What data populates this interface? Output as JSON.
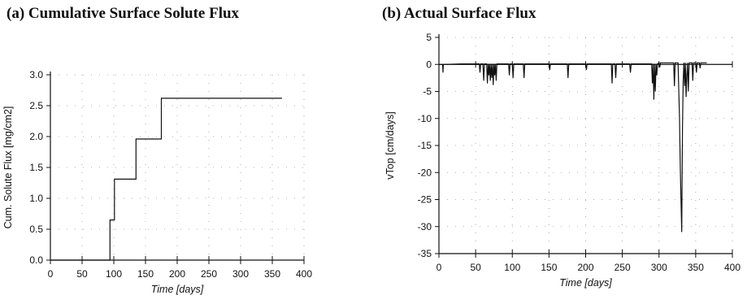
{
  "panel_titles": {
    "a": "(a)  Cumulative Surface Solute Flux",
    "b": "(b) Actual Surface Flux"
  },
  "chart_data": [
    {
      "type": "line",
      "step": true,
      "title": "(a)  Cumulative Surface Solute Flux",
      "xlabel": "Time [days]",
      "ylabel": "Cum. Solute Flux [mg/cm2]",
      "xlim": [
        0,
        400
      ],
      "ylim": [
        0,
        3.0
      ],
      "xticks": [
        "0",
        "50",
        "100",
        "150",
        "200",
        "250",
        "300",
        "350",
        "400"
      ],
      "yticks": [
        "0.0",
        "0.5",
        "1.0",
        "1.5",
        "2.0",
        "2.5",
        "3.0"
      ],
      "grid": true,
      "legend": "none",
      "line_color": "#111111",
      "series": [
        {
          "x": [
            0,
            94,
            94,
            101,
            101,
            135,
            135,
            175,
            175,
            365
          ],
          "y": [
            0.0,
            0.0,
            0.65,
            0.65,
            1.31,
            1.31,
            1.96,
            1.96,
            2.62,
            2.62
          ]
        }
      ]
    },
    {
      "type": "line",
      "title": "(b) Actual Surface Flux",
      "xlabel": "Time [days]",
      "ylabel": "vTop [cm/days]",
      "xlim": [
        0,
        400
      ],
      "ylim": [
        -35,
        5
      ],
      "xticks": [
        "0",
        "50",
        "100",
        "150",
        "200",
        "250",
        "300",
        "350",
        "400"
      ],
      "yticks": [
        "5",
        "0",
        "-5",
        "-10",
        "-15",
        "-20",
        "-25",
        "-30",
        "-35"
      ],
      "grid": true,
      "legend": "none",
      "line_color": "#111111",
      "series": [
        {
          "x": [
            0,
            5,
            5.5,
            6,
            30,
            55,
            56,
            57,
            60,
            61,
            62,
            65,
            66,
            67,
            68,
            69,
            70,
            71,
            72,
            73,
            74,
            75,
            76,
            77,
            78,
            79,
            95,
            96,
            97,
            100,
            101,
            102,
            115,
            116,
            117,
            150,
            151,
            152,
            175,
            176,
            177,
            200,
            201,
            202,
            235,
            236,
            237,
            240,
            241,
            242,
            260,
            261,
            262,
            290,
            291,
            292,
            293,
            294,
            295,
            296,
            297,
            298,
            300,
            301,
            302,
            320,
            321,
            322,
            326,
            327,
            328,
            329,
            330,
            331,
            332,
            333,
            334,
            335,
            336,
            337,
            338,
            339,
            340,
            341,
            342,
            345,
            346,
            347,
            350,
            351,
            352,
            355,
            356,
            357,
            365
          ],
          "y": [
            0,
            0,
            -1.5,
            0,
            0.1,
            0.1,
            -1.5,
            0.1,
            0.1,
            -3,
            0.1,
            0.1,
            -3.5,
            0.1,
            -2,
            0.1,
            -3,
            0.1,
            -2.5,
            0.1,
            -3.8,
            0.1,
            -2,
            0.1,
            -3,
            0.1,
            0.1,
            -2,
            0.1,
            0.1,
            -2.5,
            0.1,
            0.1,
            -2.5,
            0.1,
            0.1,
            -1,
            0.1,
            0.1,
            -2.5,
            0.1,
            0.1,
            -1,
            0.1,
            0.1,
            -3.5,
            0.1,
            0.1,
            -2.5,
            0.1,
            0.1,
            -1.5,
            0.1,
            0.1,
            -3.5,
            0.1,
            -6.5,
            0.1,
            -5,
            0.1,
            -2,
            0.1,
            0.3,
            -0.5,
            0.3,
            0.3,
            -4,
            0.3,
            0.3,
            -5,
            -10,
            -19,
            -25,
            -31,
            -12,
            -3,
            0.3,
            -4,
            0.3,
            -6,
            -2,
            0.3,
            -5,
            0.3,
            0.3,
            0.3,
            -3,
            0.3,
            0.3,
            -1.5,
            0.3,
            0.3,
            -0.7,
            0.3,
            0.3
          ]
        }
      ]
    }
  ]
}
